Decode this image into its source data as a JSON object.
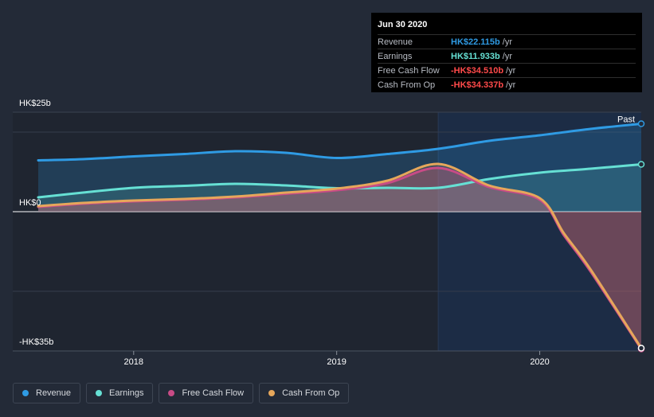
{
  "tooltip": {
    "date": "Jun 30 2020",
    "rows": [
      {
        "label": "Revenue",
        "value": "HK$22.115b",
        "unit": "/yr",
        "color": "#2f9be4"
      },
      {
        "label": "Earnings",
        "value": "HK$11.933b",
        "unit": "/yr",
        "color": "#66e0d4"
      },
      {
        "label": "Free Cash Flow",
        "value": "-HK$34.510b",
        "unit": "/yr",
        "color": "#ff4a4a"
      },
      {
        "label": "Cash From Op",
        "value": "-HK$34.337b",
        "unit": "/yr",
        "color": "#ff4a4a"
      }
    ]
  },
  "legend": [
    {
      "label": "Revenue",
      "color": "#2f9be4"
    },
    {
      "label": "Earnings",
      "color": "#66e0d4"
    },
    {
      "label": "Free Cash Flow",
      "color": "#c84b86"
    },
    {
      "label": "Cash From Op",
      "color": "#e6a75b"
    }
  ],
  "chart_data": {
    "type": "line",
    "x_unit": "year",
    "y_unit": "HK$ billions",
    "xlim": [
      2017.53,
      2020.5
    ],
    "ylim": [
      -35,
      25
    ],
    "y_tick_labels": [
      {
        "value": 25,
        "label": "HK$25b"
      },
      {
        "value": 0,
        "label": "HK$0"
      },
      {
        "value": -35,
        "label": "-HK$35b"
      }
    ],
    "x_ticks": [
      {
        "value": 2018,
        "label": "2018"
      },
      {
        "value": 2019,
        "label": "2019"
      },
      {
        "value": 2020,
        "label": "2020"
      }
    ],
    "gridlines": [
      20,
      0,
      -20
    ],
    "past_label": "Past",
    "past_region_start": 2019.5,
    "series": [
      {
        "name": "Revenue",
        "color": "#2f9be4",
        "x": [
          2017.53,
          2017.75,
          2018.0,
          2018.25,
          2018.5,
          2018.75,
          2019.0,
          2019.25,
          2019.5,
          2019.75,
          2020.0,
          2020.25,
          2020.5
        ],
        "values": [
          12.9,
          13.2,
          13.9,
          14.5,
          15.2,
          14.8,
          13.5,
          14.5,
          15.8,
          17.8,
          19.2,
          20.8,
          22.1
        ]
      },
      {
        "name": "Earnings",
        "color": "#66e0d4",
        "x": [
          2017.53,
          2017.75,
          2018.0,
          2018.25,
          2018.5,
          2018.75,
          2019.0,
          2019.25,
          2019.5,
          2019.75,
          2020.0,
          2020.25,
          2020.5
        ],
        "values": [
          3.6,
          4.8,
          6.0,
          6.5,
          7.0,
          6.6,
          5.9,
          6.0,
          6.0,
          8.2,
          9.8,
          10.8,
          11.9
        ]
      },
      {
        "name": "Free Cash Flow",
        "color": "#c84b86",
        "x": [
          2017.53,
          2017.75,
          2018.0,
          2018.25,
          2018.5,
          2018.75,
          2019.0,
          2019.25,
          2019.5,
          2019.75,
          2020.0,
          2020.12,
          2020.25,
          2020.5
        ],
        "values": [
          1.2,
          2.0,
          2.6,
          3.0,
          3.6,
          4.5,
          5.4,
          7.2,
          11.0,
          6.2,
          3.0,
          -6.0,
          -15.0,
          -34.5
        ]
      },
      {
        "name": "Cash From Op",
        "color": "#e6a75b",
        "x": [
          2017.53,
          2017.75,
          2018.0,
          2018.25,
          2018.5,
          2018.75,
          2019.0,
          2019.25,
          2019.5,
          2019.75,
          2020.0,
          2020.12,
          2020.25,
          2020.5
        ],
        "values": [
          1.4,
          2.2,
          2.8,
          3.2,
          3.8,
          4.8,
          5.8,
          7.8,
          12.0,
          6.6,
          3.4,
          -5.5,
          -14.5,
          -34.3
        ]
      }
    ]
  }
}
